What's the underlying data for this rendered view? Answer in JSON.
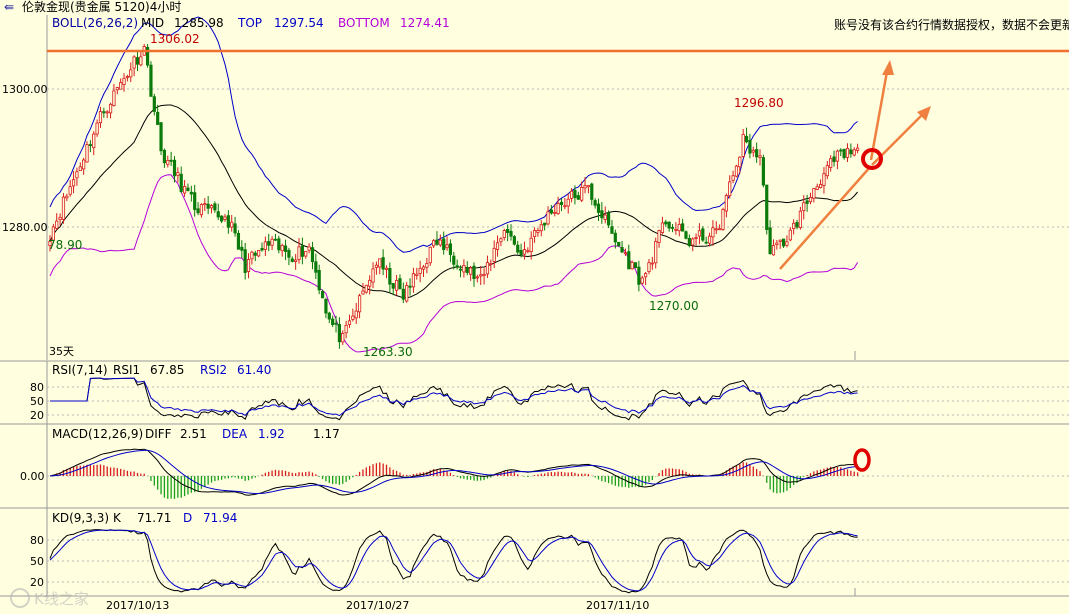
{
  "window": {
    "title": "伦敦金现(贵金属 5120)4小时"
  },
  "notice": "账号没有该合约行情数据授权，数据不会更新",
  "colors": {
    "background": "#ffffe0",
    "grid": "#b8b8b8",
    "up_candle": "#d81b1b",
    "down_candle": "#0a7a0a",
    "boll_mid": "#000000",
    "boll_top": "#0000c8",
    "boll_bottom": "#b400d8",
    "resistance_line": "#f07030",
    "trend_line": "#f08040",
    "marker": "#e00000",
    "label_red": "#c00000",
    "label_green": "#0a6a0a",
    "macd_pos": "#d81b1b",
    "macd_neg": "#1aa01a"
  },
  "boll_header": {
    "name": "BOLL(26,26,2)",
    "mid_label": "MID",
    "mid_value": "1285.98",
    "top_label": "TOP",
    "top_value": "1297.54",
    "bottom_label": "BOTTOM",
    "bottom_value": "1274.41"
  },
  "price_labels": {
    "high1": "1306.02",
    "high2": "1296.80",
    "low1": "1263.30",
    "low2": "1270.00",
    "left": "78.90",
    "period": "35天"
  },
  "rsi_header": {
    "name": "RSI(7,14)",
    "rsi1_label": "RSI1",
    "rsi1_value": "67.85",
    "rsi2_label": "RSI2",
    "rsi2_value": "61.40"
  },
  "macd_header": {
    "name": "MACD(12,26,9)",
    "diff_label": "DIFF",
    "diff_value": "2.51",
    "dea_label": "DEA",
    "dea_value": "1.92",
    "macd_value": "1.17"
  },
  "kd_header": {
    "name": "KD(9,3,3)",
    "k_label": "K",
    "k_value": "71.71",
    "d_label": "D",
    "d_value": "71.94"
  },
  "date_labels": [
    "2017/10/13",
    "2017/10/27",
    "2017/11/10"
  ],
  "watermark": "K线之家",
  "chart_data": {
    "type": "candlestick",
    "price_axis": {
      "ticks": [
        1280.0,
        1300.0
      ],
      "tick_labels": [
        "1280.00",
        "1300.00"
      ],
      "ylim": [
        1260,
        1310
      ]
    },
    "rsi_axis": {
      "ticks": [
        20,
        50,
        80
      ],
      "tick_labels": [
        "20",
        "50",
        "80"
      ]
    },
    "macd_axis": {
      "ticks": [
        0
      ],
      "tick_labels": [
        "0.00"
      ]
    },
    "kd_axis": {
      "ticks": [
        20,
        50,
        80
      ],
      "tick_labels": [
        "20",
        "50",
        "80"
      ]
    },
    "x_labels": [
      "2017/10/13",
      "2017/10/27",
      "2017/11/10"
    ],
    "resistance_level": 1305.5,
    "anchors": [
      {
        "i": 0,
        "p": 1279.0
      },
      {
        "i": 15,
        "p": 1296.0
      },
      {
        "i": 25,
        "p": 1304.0
      },
      {
        "i": 28,
        "p": 1306.0
      },
      {
        "i": 33,
        "p": 1291.0
      },
      {
        "i": 43,
        "p": 1283.0
      },
      {
        "i": 53,
        "p": 1281.0
      },
      {
        "i": 58,
        "p": 1274.5
      },
      {
        "i": 65,
        "p": 1277.5
      },
      {
        "i": 72,
        "p": 1276.0
      },
      {
        "i": 77,
        "p": 1277.0
      },
      {
        "i": 83,
        "p": 1266.5
      },
      {
        "i": 87,
        "p": 1263.5
      },
      {
        "i": 97,
        "p": 1275.0
      },
      {
        "i": 105,
        "p": 1270.0
      },
      {
        "i": 115,
        "p": 1278.0
      },
      {
        "i": 128,
        "p": 1272.0
      },
      {
        "i": 135,
        "p": 1280.0
      },
      {
        "i": 140,
        "p": 1276.0
      },
      {
        "i": 150,
        "p": 1283.0
      },
      {
        "i": 160,
        "p": 1285.5
      },
      {
        "i": 168,
        "p": 1278.0
      },
      {
        "i": 176,
        "p": 1272.0
      },
      {
        "i": 183,
        "p": 1281.0
      },
      {
        "i": 190,
        "p": 1278.0
      },
      {
        "i": 198,
        "p": 1279.0
      },
      {
        "i": 206,
        "p": 1292.5
      },
      {
        "i": 211,
        "p": 1290.0
      },
      {
        "i": 214,
        "p": 1276.0
      },
      {
        "i": 220,
        "p": 1279.0
      },
      {
        "i": 228,
        "p": 1286.5
      },
      {
        "i": 234,
        "p": 1290.0
      },
      {
        "i": 240,
        "p": 1291.0
      }
    ]
  }
}
